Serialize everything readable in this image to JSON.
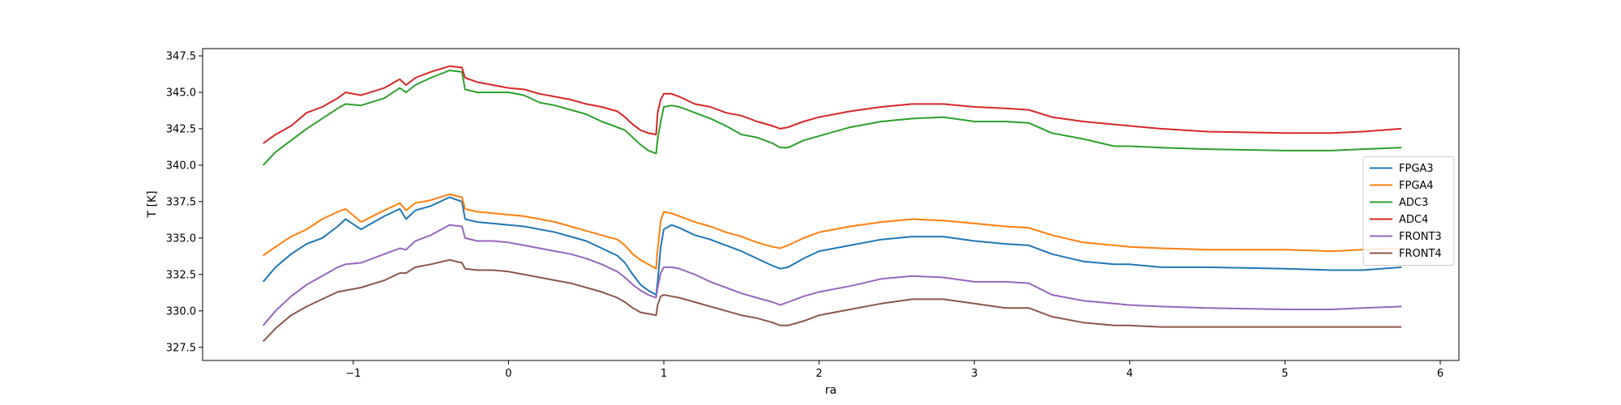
{
  "chart_data": {
    "type": "line",
    "title": "",
    "xlabel": "ra",
    "ylabel": "T [K]",
    "xlim": [
      -1.97,
      6.12
    ],
    "ylim": [
      326.6,
      348.0
    ],
    "xticks": [
      -1,
      0,
      1,
      2,
      3,
      4,
      5,
      6
    ],
    "xtick_labels": [
      "−1",
      "0",
      "1",
      "2",
      "3",
      "4",
      "5",
      "6"
    ],
    "yticks": [
      327.5,
      330.0,
      332.5,
      335.0,
      337.5,
      340.0,
      342.5,
      345.0,
      347.5
    ],
    "ytick_labels": [
      "327.5",
      "330.0",
      "332.5",
      "335.0",
      "337.5",
      "340.0",
      "342.5",
      "345.0",
      "347.5"
    ],
    "grid": false,
    "legend_position": "center-right",
    "x": [
      -1.58,
      -1.5,
      -1.4,
      -1.3,
      -1.2,
      -1.1,
      -1.05,
      -0.95,
      -0.8,
      -0.7,
      -0.66,
      -0.6,
      -0.5,
      -0.38,
      -0.3,
      -0.28,
      -0.2,
      -0.1,
      0.0,
      0.1,
      0.2,
      0.3,
      0.4,
      0.5,
      0.6,
      0.7,
      0.75,
      0.8,
      0.85,
      0.9,
      0.95,
      0.96,
      0.98,
      1.0,
      1.05,
      1.1,
      1.2,
      1.3,
      1.4,
      1.5,
      1.6,
      1.7,
      1.75,
      1.8,
      1.9,
      2.0,
      2.2,
      2.4,
      2.6,
      2.8,
      3.0,
      3.2,
      3.35,
      3.5,
      3.7,
      3.9,
      4.0,
      4.2,
      4.5,
      5.0,
      5.3,
      5.5,
      5.75
    ],
    "series": [
      {
        "name": "FPGA3",
        "color": "#1f77b4",
        "values": [
          332.0,
          333.0,
          333.9,
          334.6,
          335.0,
          335.8,
          336.3,
          335.6,
          336.5,
          337.0,
          336.3,
          336.9,
          337.2,
          337.8,
          337.5,
          336.3,
          336.1,
          336.0,
          335.9,
          335.8,
          335.6,
          335.4,
          335.1,
          334.8,
          334.3,
          333.8,
          333.3,
          332.5,
          331.8,
          331.4,
          331.1,
          332.0,
          334.4,
          335.6,
          335.9,
          335.7,
          335.2,
          334.9,
          334.5,
          334.1,
          333.6,
          333.1,
          332.9,
          333.0,
          333.6,
          334.1,
          334.5,
          334.9,
          335.1,
          335.1,
          334.8,
          334.6,
          334.5,
          333.9,
          333.4,
          333.2,
          333.2,
          333.0,
          333.0,
          332.9,
          332.8,
          332.8,
          333.0
        ]
      },
      {
        "name": "FPGA4",
        "color": "#ff7f0e",
        "values": [
          333.8,
          334.4,
          335.1,
          335.6,
          336.3,
          336.8,
          337.0,
          336.1,
          336.9,
          337.4,
          336.9,
          337.4,
          337.6,
          338.0,
          337.8,
          337.0,
          336.8,
          336.7,
          336.6,
          336.5,
          336.3,
          336.1,
          335.8,
          335.5,
          335.2,
          334.9,
          334.5,
          333.9,
          333.5,
          333.2,
          332.9,
          334.2,
          336.2,
          336.8,
          336.7,
          336.5,
          336.1,
          335.8,
          335.4,
          335.1,
          334.7,
          334.4,
          334.3,
          334.5,
          335.0,
          335.4,
          335.8,
          336.1,
          336.3,
          336.2,
          336.0,
          335.8,
          335.7,
          335.2,
          334.7,
          334.5,
          334.4,
          334.3,
          334.2,
          334.2,
          334.1,
          334.2,
          334.3
        ]
      },
      {
        "name": "ADC3",
        "color": "#2ca02c",
        "values": [
          340.0,
          340.9,
          341.7,
          342.5,
          343.2,
          343.9,
          344.2,
          344.1,
          344.6,
          345.3,
          345.0,
          345.5,
          346.0,
          346.5,
          346.4,
          345.2,
          345.0,
          345.0,
          345.0,
          344.8,
          344.3,
          344.1,
          343.8,
          343.5,
          343.0,
          342.6,
          342.4,
          341.9,
          341.4,
          341.0,
          340.8,
          341.8,
          343.0,
          344.0,
          344.1,
          344.0,
          343.6,
          343.2,
          342.7,
          342.1,
          341.9,
          341.5,
          341.2,
          341.2,
          341.7,
          342.0,
          342.6,
          343.0,
          343.2,
          343.3,
          343.0,
          343.0,
          342.9,
          342.2,
          341.8,
          341.3,
          341.3,
          341.2,
          341.1,
          341.0,
          341.0,
          341.1,
          341.2
        ]
      },
      {
        "name": "ADC4",
        "color": "#d62728",
        "values": [
          341.5,
          342.1,
          342.7,
          343.6,
          344.0,
          344.6,
          345.0,
          344.8,
          345.3,
          345.9,
          345.5,
          346.0,
          346.4,
          346.8,
          346.7,
          346.0,
          345.7,
          345.5,
          345.3,
          345.2,
          344.9,
          344.7,
          344.5,
          344.2,
          344.0,
          343.7,
          343.3,
          342.8,
          342.4,
          342.2,
          342.1,
          343.6,
          344.5,
          344.9,
          344.9,
          344.7,
          344.2,
          344.0,
          343.6,
          343.4,
          343.0,
          342.7,
          342.5,
          342.6,
          343.0,
          343.3,
          343.7,
          344.0,
          344.2,
          344.2,
          344.0,
          343.9,
          343.8,
          343.3,
          343.0,
          342.8,
          342.7,
          342.5,
          342.3,
          342.2,
          342.2,
          342.3,
          342.5
        ]
      },
      {
        "name": "FRONT3",
        "color": "#9467bd",
        "values": [
          329.0,
          330.0,
          331.0,
          331.8,
          332.4,
          333.0,
          333.2,
          333.3,
          333.9,
          334.3,
          334.2,
          334.8,
          335.2,
          335.9,
          335.8,
          335.0,
          334.8,
          334.8,
          334.7,
          334.5,
          334.3,
          334.1,
          333.9,
          333.6,
          333.2,
          332.7,
          332.3,
          331.8,
          331.4,
          331.1,
          330.9,
          331.6,
          332.6,
          333.0,
          333.0,
          332.9,
          332.5,
          332.0,
          331.6,
          331.2,
          330.9,
          330.6,
          330.4,
          330.6,
          331.0,
          331.3,
          331.7,
          332.2,
          332.4,
          332.3,
          332.0,
          332.0,
          331.9,
          331.1,
          330.7,
          330.5,
          330.4,
          330.3,
          330.2,
          330.1,
          330.1,
          330.2,
          330.3
        ]
      },
      {
        "name": "FRONT4",
        "color": "#8c564b",
        "values": [
          327.9,
          328.8,
          329.7,
          330.3,
          330.8,
          331.3,
          331.4,
          331.6,
          332.1,
          332.6,
          332.6,
          333.0,
          333.2,
          333.5,
          333.3,
          332.9,
          332.8,
          332.8,
          332.7,
          332.5,
          332.3,
          332.1,
          331.9,
          331.6,
          331.3,
          330.9,
          330.6,
          330.2,
          329.9,
          329.8,
          329.7,
          330.4,
          331.0,
          331.1,
          331.0,
          330.9,
          330.6,
          330.3,
          330.0,
          329.7,
          329.5,
          329.2,
          329.0,
          329.0,
          329.3,
          329.7,
          330.1,
          330.5,
          330.8,
          330.8,
          330.5,
          330.2,
          330.2,
          329.6,
          329.2,
          329.0,
          329.0,
          328.9,
          328.9,
          328.9,
          328.9,
          328.9,
          328.9
        ]
      }
    ]
  }
}
